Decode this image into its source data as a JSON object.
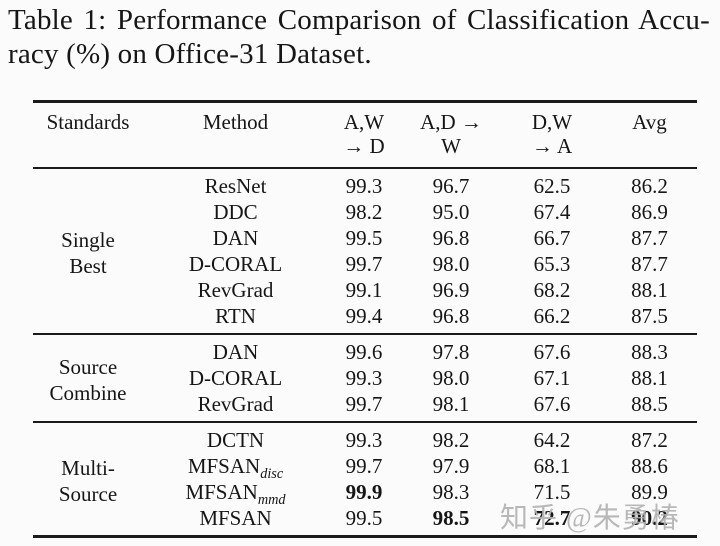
{
  "caption": {
    "line1": "Table 1: Performance Comparison of Classification Accu-",
    "line2": "racy (%) on Office-31 Dataset."
  },
  "watermark": "知乎 @朱勇椿",
  "colors": {
    "text": "#161616",
    "rule": "#1a1a1a",
    "watermark": "#b2b2b2",
    "background": "#fbfbfb"
  },
  "table": {
    "columns": [
      {
        "lines": [
          "Standards"
        ]
      },
      {
        "lines": [
          "Method"
        ]
      },
      {
        "lines": [
          "A,W",
          "→ D"
        ]
      },
      {
        "lines": [
          "A,D →",
          "W"
        ]
      },
      {
        "lines": [
          "D,W",
          "→ A"
        ]
      },
      {
        "lines": [
          "Avg"
        ]
      }
    ],
    "groups": [
      {
        "label_lines": [
          "Single",
          "Best"
        ],
        "rows": [
          {
            "method": "ResNet",
            "subscript": null,
            "values": [
              "99.3",
              "96.7",
              "62.5",
              "86.2"
            ],
            "bold": [
              false,
              false,
              false,
              false
            ]
          },
          {
            "method": "DDC",
            "subscript": null,
            "values": [
              "98.2",
              "95.0",
              "67.4",
              "86.9"
            ],
            "bold": [
              false,
              false,
              false,
              false
            ]
          },
          {
            "method": "DAN",
            "subscript": null,
            "values": [
              "99.5",
              "96.8",
              "66.7",
              "87.7"
            ],
            "bold": [
              false,
              false,
              false,
              false
            ]
          },
          {
            "method": "D-CORAL",
            "subscript": null,
            "values": [
              "99.7",
              "98.0",
              "65.3",
              "87.7"
            ],
            "bold": [
              false,
              false,
              false,
              false
            ]
          },
          {
            "method": "RevGrad",
            "subscript": null,
            "values": [
              "99.1",
              "96.9",
              "68.2",
              "88.1"
            ],
            "bold": [
              false,
              false,
              false,
              false
            ]
          },
          {
            "method": "RTN",
            "subscript": null,
            "values": [
              "99.4",
              "96.8",
              "66.2",
              "87.5"
            ],
            "bold": [
              false,
              false,
              false,
              false
            ]
          }
        ]
      },
      {
        "label_lines": [
          "Source",
          "Combine"
        ],
        "rows": [
          {
            "method": "DAN",
            "subscript": null,
            "values": [
              "99.6",
              "97.8",
              "67.6",
              "88.3"
            ],
            "bold": [
              false,
              false,
              false,
              false
            ]
          },
          {
            "method": "D-CORAL",
            "subscript": null,
            "values": [
              "99.3",
              "98.0",
              "67.1",
              "88.1"
            ],
            "bold": [
              false,
              false,
              false,
              false
            ]
          },
          {
            "method": "RevGrad",
            "subscript": null,
            "values": [
              "99.7",
              "98.1",
              "67.6",
              "88.5"
            ],
            "bold": [
              false,
              false,
              false,
              false
            ]
          }
        ]
      },
      {
        "label_lines": [
          "Multi-",
          "Source"
        ],
        "rows": [
          {
            "method": "DCTN",
            "subscript": null,
            "values": [
              "99.3",
              "98.2",
              "64.2",
              "87.2"
            ],
            "bold": [
              false,
              false,
              false,
              false
            ]
          },
          {
            "method": "MFSAN",
            "subscript": "disc",
            "values": [
              "99.7",
              "97.9",
              "68.1",
              "88.6"
            ],
            "bold": [
              false,
              false,
              false,
              false
            ]
          },
          {
            "method": "MFSAN",
            "subscript": "mmd",
            "values": [
              "99.9",
              "98.3",
              "71.5",
              "89.9"
            ],
            "bold": [
              true,
              false,
              false,
              false
            ]
          },
          {
            "method": "MFSAN",
            "subscript": null,
            "values": [
              "99.5",
              "98.5",
              "72.7",
              "90.2"
            ],
            "bold": [
              false,
              true,
              true,
              true
            ]
          }
        ]
      }
    ]
  }
}
